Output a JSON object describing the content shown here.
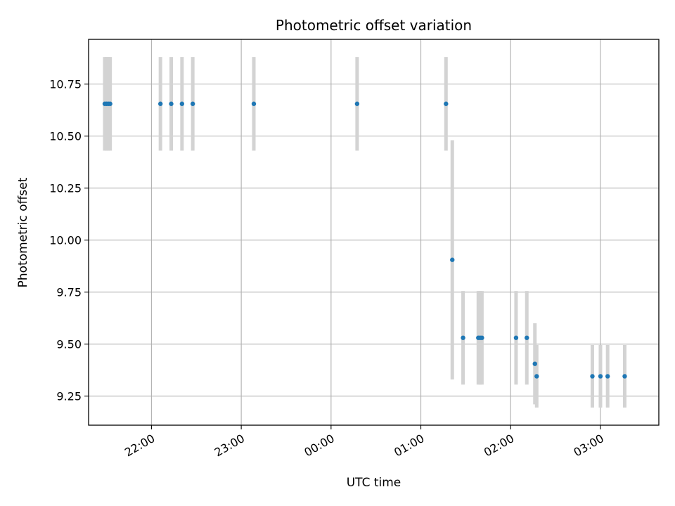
{
  "chart_data": {
    "type": "scatter",
    "title": "Photometric offset variation",
    "xlabel": "UTC time",
    "ylabel": "Photometric offset",
    "x_unit": "hours UTC (values past 24 are after midnight)",
    "xlim": [
      21.3,
      27.65
    ],
    "ylim": [
      9.11,
      10.965
    ],
    "grid": true,
    "x_ticks": [
      {
        "value": 22,
        "label": "22:00"
      },
      {
        "value": 23,
        "label": "23:00"
      },
      {
        "value": 24,
        "label": "00:00"
      },
      {
        "value": 25,
        "label": "01:00"
      },
      {
        "value": 26,
        "label": "02:00"
      },
      {
        "value": 27,
        "label": "03:00"
      }
    ],
    "y_ticks": [
      {
        "value": 9.25,
        "label": "9.25"
      },
      {
        "value": 9.5,
        "label": "9.50"
      },
      {
        "value": 9.75,
        "label": "9.75"
      },
      {
        "value": 10.0,
        "label": "10.00"
      },
      {
        "value": 10.25,
        "label": "10.25"
      },
      {
        "value": 10.5,
        "label": "10.50"
      },
      {
        "value": 10.75,
        "label": "10.75"
      }
    ],
    "colors": {
      "point": "#1f77b4",
      "errorbar": "#d3d3d3",
      "grid": "#b0b0b0"
    },
    "points": [
      {
        "x": 21.48,
        "y": 10.655,
        "err": 0.225
      },
      {
        "x": 21.5,
        "y": 10.655,
        "err": 0.225
      },
      {
        "x": 21.52,
        "y": 10.655,
        "err": 0.225
      },
      {
        "x": 21.54,
        "y": 10.655,
        "err": 0.225
      },
      {
        "x": 22.1,
        "y": 10.655,
        "err": 0.225
      },
      {
        "x": 22.22,
        "y": 10.655,
        "err": 0.225
      },
      {
        "x": 22.34,
        "y": 10.655,
        "err": 0.225
      },
      {
        "x": 22.46,
        "y": 10.655,
        "err": 0.225
      },
      {
        "x": 23.14,
        "y": 10.655,
        "err": 0.225
      },
      {
        "x": 24.29,
        "y": 10.655,
        "err": 0.225
      },
      {
        "x": 25.28,
        "y": 10.655,
        "err": 0.225
      },
      {
        "x": 25.35,
        "y": 9.905,
        "err": 0.575
      },
      {
        "x": 25.47,
        "y": 9.53,
        "err": 0.225
      },
      {
        "x": 25.64,
        "y": 9.53,
        "err": 0.225
      },
      {
        "x": 25.66,
        "y": 9.53,
        "err": 0.225
      },
      {
        "x": 25.68,
        "y": 9.53,
        "err": 0.225
      },
      {
        "x": 26.06,
        "y": 9.53,
        "err": 0.225
      },
      {
        "x": 26.18,
        "y": 9.53,
        "err": 0.225
      },
      {
        "x": 26.27,
        "y": 9.405,
        "err": 0.195
      },
      {
        "x": 26.29,
        "y": 9.345,
        "err": 0.15
      },
      {
        "x": 26.91,
        "y": 9.345,
        "err": 0.15
      },
      {
        "x": 27.0,
        "y": 9.345,
        "err": 0.15
      },
      {
        "x": 27.08,
        "y": 9.345,
        "err": 0.15
      },
      {
        "x": 27.27,
        "y": 9.345,
        "err": 0.15
      }
    ]
  }
}
